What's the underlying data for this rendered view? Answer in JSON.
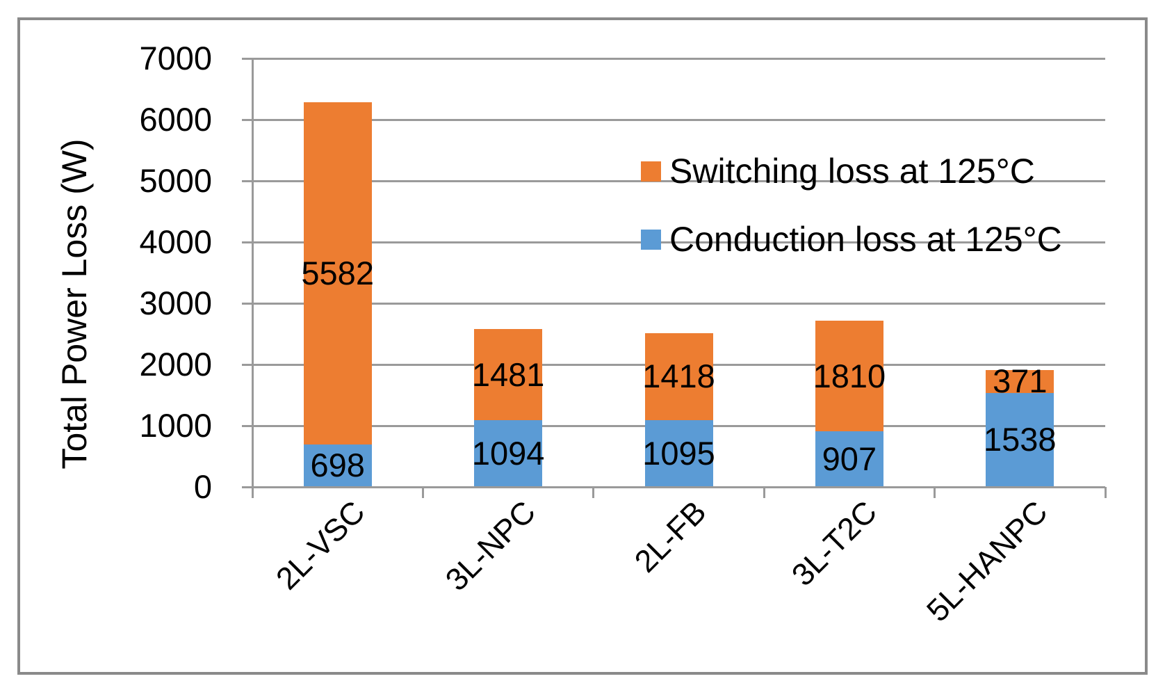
{
  "figure": {
    "background": "#ffffff",
    "border_color": "#8a8a8a"
  },
  "chart_data": {
    "type": "bar",
    "stacked": true,
    "title": "",
    "xlabel": "",
    "ylabel": "Total Power Loss (W)",
    "categories": [
      "2L-VSC",
      "3L-NPC",
      "2L-FB",
      "3L-T2C",
      "5L-HANPC"
    ],
    "series": [
      {
        "name": "Conduction loss at 125°C",
        "color": "#5B9BD5",
        "values": [
          698,
          1094,
          1095,
          907,
          1538
        ]
      },
      {
        "name": "Switching loss at 125°C",
        "color": "#ED7D31",
        "values": [
          5582,
          1481,
          1418,
          1810,
          371
        ]
      }
    ],
    "ylim": [
      0,
      7000
    ],
    "yticks": [
      0,
      1000,
      2000,
      3000,
      4000,
      5000,
      6000,
      7000
    ],
    "grid": true,
    "grid_color": "#9a9a9a",
    "axis_color": "#9a9a9a",
    "tick_label_color": "#000000",
    "data_label_color": "#000000",
    "data_labels": true,
    "legend": {
      "position": "inside-top-right",
      "entries": [
        {
          "label": "Switching loss at 125°C",
          "color": "#ED7D31"
        },
        {
          "label": "Conduction loss at 125°C",
          "color": "#5B9BD5"
        }
      ]
    }
  }
}
